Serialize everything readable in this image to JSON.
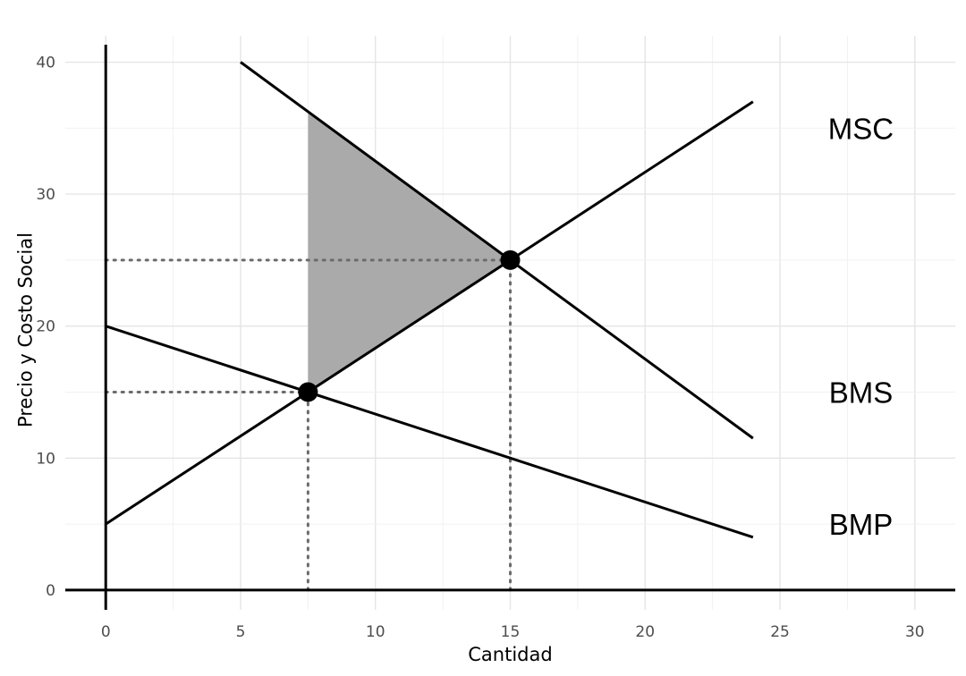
{
  "chart_data": {
    "type": "line",
    "title": "",
    "xlabel": "Cantidad",
    "ylabel": "Precio y Costo Social",
    "xlim": [
      -1.5,
      31.5
    ],
    "ylim": [
      -1.5,
      42
    ],
    "x_ticks": [
      0,
      5,
      10,
      15,
      20,
      25,
      30
    ],
    "y_ticks": [
      0,
      10,
      20,
      30,
      40
    ],
    "grid": true,
    "series": [
      {
        "name": "MSC",
        "points": [
          [
            0,
            5
          ],
          [
            24,
            37
          ]
        ]
      },
      {
        "name": "BMS",
        "points": [
          [
            5,
            40
          ],
          [
            24,
            11.5
          ]
        ]
      },
      {
        "name": "BMP",
        "points": [
          [
            0,
            20
          ],
          [
            24,
            4
          ]
        ]
      }
    ],
    "curve_labels": [
      {
        "text": "MSC",
        "x": 28,
        "y": 35
      },
      {
        "text": "BMS",
        "x": 28,
        "y": 15
      },
      {
        "text": "BMP",
        "x": 28,
        "y": 5
      }
    ],
    "equilibrium_points": [
      {
        "x": 7.5,
        "y": 15
      },
      {
        "x": 15,
        "y": 25
      }
    ],
    "shaded_area": [
      [
        7.5,
        36.25
      ],
      [
        7.5,
        15
      ],
      [
        15,
        25
      ]
    ],
    "shade_color": "#aaaaaa",
    "line_color": "#000000",
    "guide_color": "#6b6b6b"
  }
}
